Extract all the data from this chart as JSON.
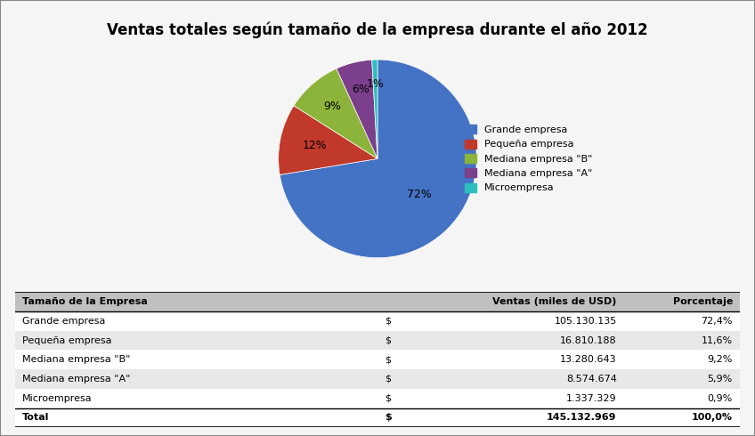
{
  "title": "Ventas totales según tamaño de la empresa durante el año 2012",
  "slices": [
    72.4,
    11.6,
    9.2,
    5.9,
    0.9
  ],
  "labels_pct": [
    "72%",
    "12%",
    "9%",
    "6%",
    "1%"
  ],
  "colors": [
    "#4472C4",
    "#C0392B",
    "#8DB43A",
    "#7B3F8C",
    "#2BBFC0"
  ],
  "legend_labels": [
    "Grande empresa",
    "Pequeña empresa",
    "Mediana empresa \"B\"",
    "Mediana empresa \"A\"",
    "Microempresa"
  ],
  "table_headers": [
    "Tamaño de la Empresa",
    "Ventas (miles de USD)",
    "Porcentaje"
  ],
  "table_rows": [
    [
      "Grande empresa",
      "$",
      "105.130.135",
      "72,4%"
    ],
    [
      "Pequeña empresa",
      "$",
      "16.810.188",
      "11,6%"
    ],
    [
      "Mediana empresa \"B\"",
      "$",
      "13.280.643",
      "9,2%"
    ],
    [
      "Mediana empresa \"A\"",
      "$",
      "8.574.674",
      "5,9%"
    ],
    [
      "Microempresa",
      "$",
      "1.337.329",
      "0,9%"
    ]
  ],
  "table_total": [
    "Total",
    "$",
    "145.132.969",
    "100,0%"
  ],
  "background_color": "#f5f5f5",
  "border_color": "#888888"
}
